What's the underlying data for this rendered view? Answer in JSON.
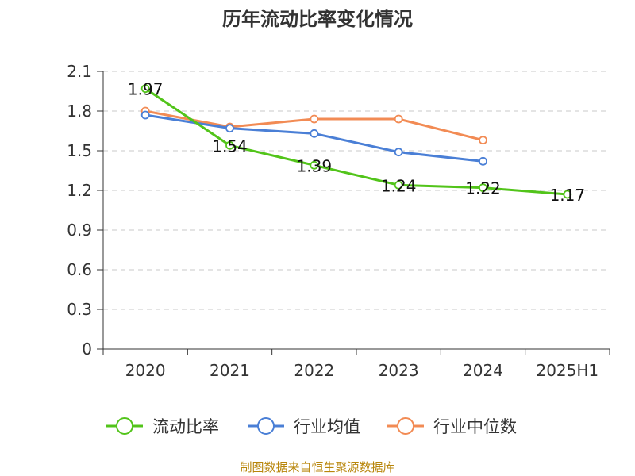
{
  "chart_data": {
    "type": "line",
    "title": "历年流动比率变化情况",
    "categories": [
      "2020",
      "2021",
      "2022",
      "2023",
      "2024",
      "2025H1"
    ],
    "ylim": [
      0,
      2.1
    ],
    "yticks": [
      "0",
      "0.3",
      "0.6",
      "0.9",
      "1.2",
      "1.5",
      "1.8",
      "2.1"
    ],
    "grid": true,
    "legend_position": "bottom",
    "series": [
      {
        "name": "流动比率",
        "color": "#52c41a",
        "values": [
          1.97,
          1.54,
          1.39,
          1.24,
          1.22,
          1.17
        ],
        "labels": [
          "1.97",
          "1.54",
          "1.39",
          "1.24",
          "1.22",
          "1.17"
        ]
      },
      {
        "name": "行业均值",
        "color": "#4a7fd6",
        "values": [
          1.77,
          1.67,
          1.63,
          1.49,
          1.42,
          null
        ]
      },
      {
        "name": "行业中位数",
        "color": "#f28b54",
        "values": [
          1.8,
          1.68,
          1.74,
          1.74,
          1.58,
          null
        ]
      }
    ],
    "source": "制图数据来自恒生聚源数据库"
  }
}
